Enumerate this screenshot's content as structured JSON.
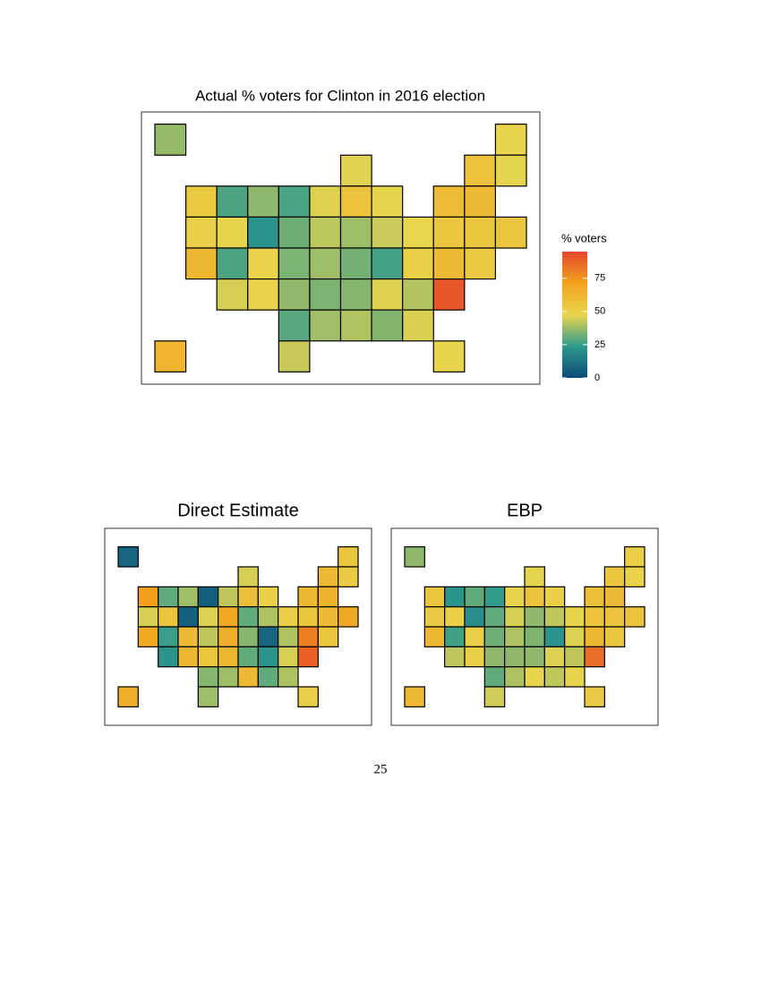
{
  "chart_data": [
    {
      "type": "map",
      "title": "Actual % voters for Clinton in 2016 election",
      "values": [
        36.6,
        47.8,
        46.5,
        56.7,
        47.0,
        52.5,
        27.5,
        35.7,
        27.2,
        46.4,
        55.8,
        47.3,
        59.0,
        60.0,
        50.1,
        47.9,
        21.6,
        31.7,
        41.7,
        37.9,
        43.6,
        47.5,
        55.0,
        54.6,
        54.4,
        61.7,
        27.5,
        48.2,
        33.7,
        38.1,
        32.7,
        26.4,
        49.8,
        60.3,
        53.1,
        45.1,
        48.3,
        36.1,
        33.7,
        34.7,
        46.2,
        40.7,
        90.9,
        28.9,
        38.4,
        40.1,
        34.4,
        45.6,
        62.2,
        43.2,
        47.8
      ],
      "legend_title": "% voters",
      "colorlim": [
        0,
        95
      ],
      "colorticks": [
        0,
        25,
        50,
        75
      ],
      "colors": [
        "#0b4a78",
        "#2f9a8c",
        "#e9d54e",
        "#f2a21e",
        "#e5462a"
      ]
    },
    {
      "type": "map",
      "title": "Direct Estimate",
      "values": [
        8,
        55,
        45,
        60,
        52,
        72,
        30,
        38,
        6,
        42,
        58,
        50,
        62,
        64,
        45,
        55,
        7,
        46,
        68,
        30,
        40,
        50,
        55,
        60,
        68,
        68,
        25,
        60,
        42,
        65,
        35,
        8,
        40,
        80,
        55,
        22,
        62,
        55,
        62,
        30,
        22,
        45,
        88,
        35,
        38,
        60,
        30,
        40,
        65,
        38,
        50
      ]
    },
    {
      "type": "map",
      "title": "EBP",
      "values": [
        36,
        50,
        47,
        54,
        49,
        55,
        22,
        30,
        24,
        48,
        56,
        50,
        58,
        60,
        52,
        50,
        20,
        30,
        45,
        36,
        42,
        48,
        56,
        56,
        56,
        62,
        26,
        50,
        32,
        40,
        34,
        22,
        46,
        62,
        55,
        42,
        50,
        36,
        36,
        36,
        46,
        42,
        85,
        30,
        40,
        48,
        42,
        48,
        60,
        44,
        52
      ]
    }
  ],
  "page_number": "25"
}
